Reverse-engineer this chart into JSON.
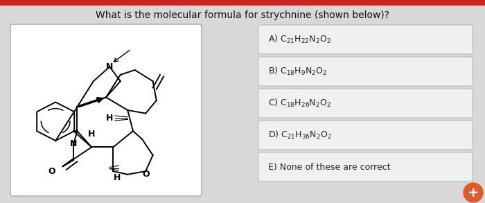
{
  "title": "What is the molecular formula for strychnine (shown below)?",
  "title_fontsize": 10,
  "bg_color": "#d8d8d8",
  "top_bar_color": "#cc2222",
  "box_bg": "#f0f0f0",
  "box_border": "#bbbbbb",
  "options": [
    {
      "label": "A) ",
      "formula": "C$_{21}$H$_{22}$N$_2$O$_2$"
    },
    {
      "label": "B) ",
      "formula": "C$_{18}$H$_9$N$_2$O$_2$"
    },
    {
      "label": "C) ",
      "formula": "C$_{18}$H$_{26}$N$_2$O$_2$"
    },
    {
      "label": "D) ",
      "formula": "C$_{21}$H$_{36}$N$_2$O$_2$"
    },
    {
      "label": "E) ",
      "formula": "None of these are correct"
    }
  ],
  "orange_button_color": "#e05a2b",
  "struct_box_bg": "#ffffff",
  "struct_box_border": "#aaaaaa"
}
